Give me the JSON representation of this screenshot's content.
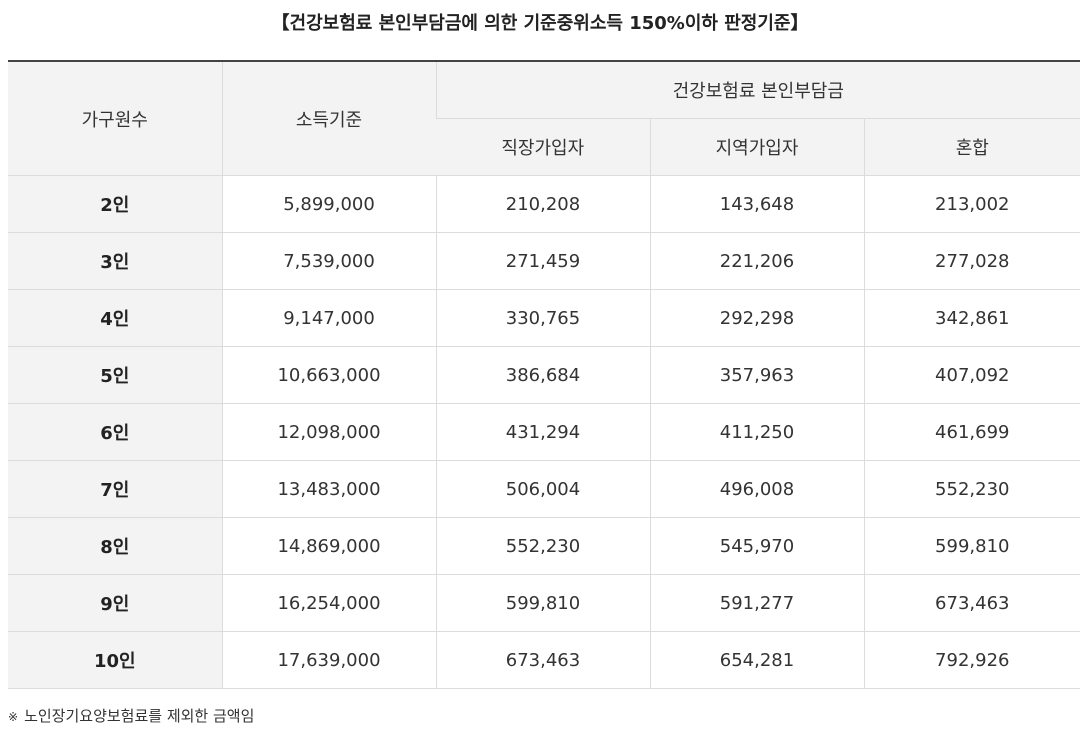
{
  "title": "【건강보험료 본인부담금에 의한 기준중위소득 150%이하 판정기준】",
  "table": {
    "header": {
      "household": "가구원수",
      "income": "소득기준",
      "group": "건강보험료 본인부담금",
      "employee": "직장가입자",
      "regional": "지역가입자",
      "mixed": "혼합"
    },
    "rows": [
      [
        "2인",
        "5,899,000",
        "210,208",
        "143,648",
        "213,002"
      ],
      [
        "3인",
        "7,539,000",
        "271,459",
        "221,206",
        "277,028"
      ],
      [
        "4인",
        "9,147,000",
        "330,765",
        "292,298",
        "342,861"
      ],
      [
        "5인",
        "10,663,000",
        "386,684",
        "357,963",
        "407,092"
      ],
      [
        "6인",
        "12,098,000",
        "431,294",
        "411,250",
        "461,699"
      ],
      [
        "7인",
        "13,483,000",
        "506,004",
        "496,008",
        "552,230"
      ],
      [
        "8인",
        "14,869,000",
        "552,230",
        "545,970",
        "599,810"
      ],
      [
        "9인",
        "16,254,000",
        "599,810",
        "591,277",
        "673,463"
      ],
      [
        "10인",
        "17,639,000",
        "673,463",
        "654,281",
        "792,926"
      ]
    ]
  },
  "footnote": {
    "mark": "※",
    "text": "노인장기요양보험료를 제외한 금액임"
  }
}
